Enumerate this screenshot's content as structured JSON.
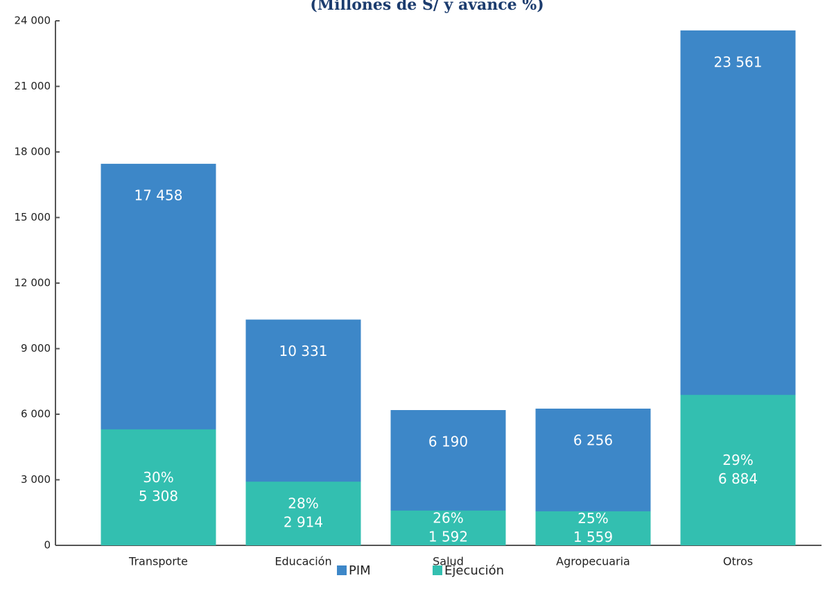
{
  "chart_data": {
    "type": "bar",
    "title": "(Millones de S/ y avance %)",
    "categories": [
      "Transporte",
      "Educación",
      "Salud",
      "Agropecuaria",
      "Otros"
    ],
    "series": [
      {
        "name": "PIM",
        "color": "#3d87c8",
        "values": [
          17458,
          10331,
          6190,
          6256,
          23561
        ],
        "value_labels": [
          "17 458",
          "10 331",
          "6 190",
          "6 256",
          "23 561"
        ]
      },
      {
        "name": "Ejecución",
        "color": "#33bfb0",
        "values": [
          5308,
          2914,
          1592,
          1559,
          6884
        ],
        "value_labels": [
          "5 308",
          "2 914",
          "1 592",
          "1 559",
          "6 884"
        ],
        "shares": [
          30,
          28,
          26,
          25,
          29
        ],
        "share_labels": [
          "30%",
          "28%",
          "26%",
          "25%",
          "29%"
        ]
      }
    ],
    "ylim": [
      0,
      24000
    ],
    "yticks": [
      0,
      {
        "value": 3000,
        "label": "3 000"
      },
      {
        "value": 6000,
        "label": "6 000"
      },
      {
        "value": 9000,
        "label": "9 000"
      },
      {
        "value": 12000,
        "label": "12 000"
      },
      {
        "value": 15000,
        "label": "15 000"
      },
      {
        "value": 18000,
        "label": "18 000"
      },
      {
        "value": 21000,
        "label": "21 000"
      },
      {
        "value": 24000,
        "label": "24 000"
      }
    ],
    "grid": false
  }
}
